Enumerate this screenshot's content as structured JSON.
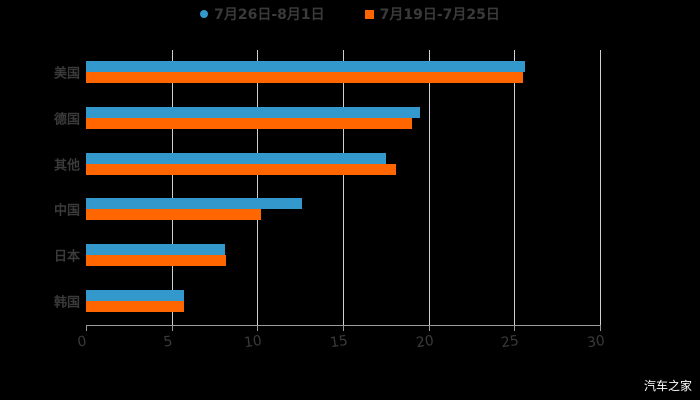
{
  "chart_data": {
    "type": "bar",
    "orientation": "horizontal",
    "title": "",
    "xlabel": "",
    "ylabel": "",
    "categories": [
      "美国",
      "德国",
      "其他",
      "中国",
      "日本",
      "韩国"
    ],
    "series": [
      {
        "name": "7月26日-8月1日",
        "color": "#3399cc",
        "values": [
          25.6,
          19.5,
          17.5,
          12.6,
          8.1,
          5.7
        ]
      },
      {
        "name": "7月19日-7月25日",
        "color": "#ff6600",
        "values": [
          25.5,
          19.0,
          18.1,
          10.2,
          8.2,
          5.7
        ]
      }
    ],
    "xlim": [
      0,
      30
    ],
    "xticks": [
      "0",
      "5",
      "10",
      "15",
      "20",
      "25",
      "30"
    ],
    "grid": "vertical",
    "legend_position": "top"
  },
  "legend": [
    {
      "label": "7月26日-8月1日",
      "color": "#3399cc",
      "marker": "circle"
    },
    {
      "label": "7月19日-7月25日",
      "color": "#ff6600",
      "marker": "square"
    }
  ],
  "watermark": "汽车之家"
}
